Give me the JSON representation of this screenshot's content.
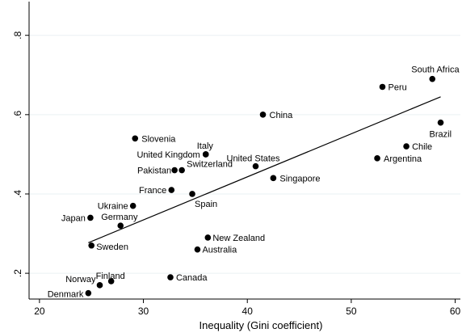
{
  "chart_data": {
    "type": "scatter",
    "xlabel": "Inequality (Gini coefficient)",
    "ylabel": "",
    "xlim": [
      19,
      60.5
    ],
    "ylim": [
      0.135,
      0.885
    ],
    "x_ticks": [
      20,
      30,
      40,
      50,
      60
    ],
    "y_ticks": [
      0.2,
      0.4,
      0.6,
      0.8
    ],
    "x_tick_labels": [
      "20",
      "30",
      "40",
      "50",
      "60"
    ],
    "y_tick_labels": [
      ".2",
      ".4",
      ".6",
      ".8"
    ],
    "grid": "horizontal",
    "points": [
      {
        "label": "South Africa",
        "x": 57.8,
        "y": 0.69
      },
      {
        "label": "Peru",
        "x": 53.0,
        "y": 0.67
      },
      {
        "label": "China",
        "x": 41.5,
        "y": 0.6
      },
      {
        "label": "Brazil",
        "x": 58.6,
        "y": 0.58
      },
      {
        "label": "Slovenia",
        "x": 29.2,
        "y": 0.54
      },
      {
        "label": "Chile",
        "x": 55.3,
        "y": 0.52
      },
      {
        "label": "Italy",
        "x": 36.0,
        "y": 0.5
      },
      {
        "label": "United Kingdom",
        "x": 36.0,
        "y": 0.5
      },
      {
        "label": "Argentina",
        "x": 52.5,
        "y": 0.49
      },
      {
        "label": "United States",
        "x": 40.8,
        "y": 0.47
      },
      {
        "label": "Switzerland",
        "x": 33.7,
        "y": 0.46
      },
      {
        "label": "Pakistan",
        "x": 33.0,
        "y": 0.46
      },
      {
        "label": "Singapore",
        "x": 42.5,
        "y": 0.44
      },
      {
        "label": "France",
        "x": 32.7,
        "y": 0.41
      },
      {
        "label": "Spain",
        "x": 34.7,
        "y": 0.4
      },
      {
        "label": "Ukraine",
        "x": 29.0,
        "y": 0.37
      },
      {
        "label": "Japan",
        "x": 24.9,
        "y": 0.34
      },
      {
        "label": "Germany",
        "x": 27.8,
        "y": 0.32
      },
      {
        "label": "New Zealand",
        "x": 36.2,
        "y": 0.29
      },
      {
        "label": "Sweden",
        "x": 25.0,
        "y": 0.27
      },
      {
        "label": "Australia",
        "x": 35.2,
        "y": 0.26
      },
      {
        "label": "Canada",
        "x": 32.6,
        "y": 0.19
      },
      {
        "label": "Finland",
        "x": 26.9,
        "y": 0.18
      },
      {
        "label": "Norway",
        "x": 25.8,
        "y": 0.17
      },
      {
        "label": "Denmark",
        "x": 24.7,
        "y": 0.15
      }
    ],
    "fit_line": {
      "x": [
        24.7,
        58.6
      ],
      "y": [
        0.277,
        0.645
      ]
    }
  }
}
